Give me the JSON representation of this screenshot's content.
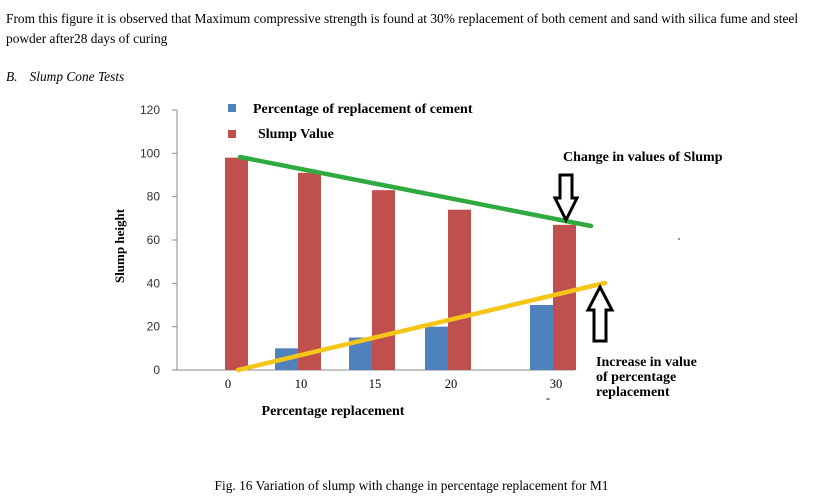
{
  "paragraph": "From this figure it is observed that Maximum compressive strength is found at 30% replacement of both cement and sand with silica fume and steel powder after28 days of curing",
  "section": {
    "number": "B.",
    "title": "Slump Cone Tests"
  },
  "caption": "Fig. 16 Variation of slump with change in percentage replacement for M1",
  "chart_data": {
    "type": "bar",
    "categories": [
      "0",
      "10",
      "15",
      "20",
      "30"
    ],
    "series": [
      {
        "name": "Percentage of replacement of cement",
        "color": "#4f81bd",
        "values": [
          0,
          10,
          15,
          20,
          30
        ]
      },
      {
        "name": "Slump Value",
        "color": "#c0504d",
        "values": [
          98,
          91,
          83,
          74,
          67
        ]
      }
    ],
    "ylabel": "Slump height",
    "xlabel": "Percentage replacement",
    "ylim": [
      0,
      120
    ],
    "yticks": [
      0,
      20,
      40,
      60,
      80,
      100,
      120
    ],
    "grid": false,
    "legend": "top",
    "annotations": [
      {
        "id": "slump",
        "lines": [
          "Change in values of Slump"
        ],
        "line_color": "#2eaa3f"
      },
      {
        "id": "increase",
        "lines": [
          "Increase in value",
          "of percentage",
          "replacement"
        ],
        "line_color": "#f5c518"
      }
    ]
  }
}
